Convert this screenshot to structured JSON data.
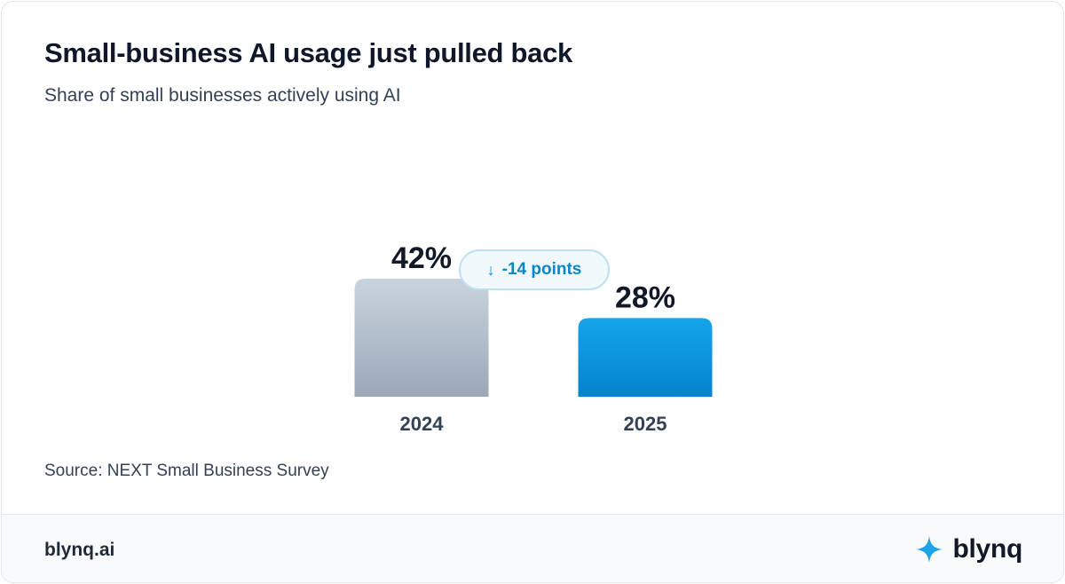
{
  "title": "Small-business AI usage just pulled back",
  "subtitle": "Share of small businesses actively using AI",
  "delta": {
    "arrow": "↓",
    "text": "-14 points"
  },
  "source": "Source: NEXT Small Business Survey",
  "footer": {
    "site": "blynq.ai",
    "brand": "blynq",
    "icon": "sparkle-icon"
  },
  "colors": {
    "bar_2024_top": "#c9d3dd",
    "bar_2024_bottom": "#9aa8b8",
    "bar_2025_top": "#14a5ea",
    "bar_2025_bottom": "#0483cd",
    "accent": "#0b86c8"
  },
  "chart_data": {
    "type": "bar",
    "categories": [
      "2024",
      "2025"
    ],
    "values": [
      42,
      28
    ],
    "value_labels": [
      "42%",
      "28%"
    ],
    "unit": "%",
    "title": "Small-business AI usage just pulled back",
    "subtitle": "Share of small businesses actively using AI",
    "grid": false,
    "legend": "none"
  }
}
